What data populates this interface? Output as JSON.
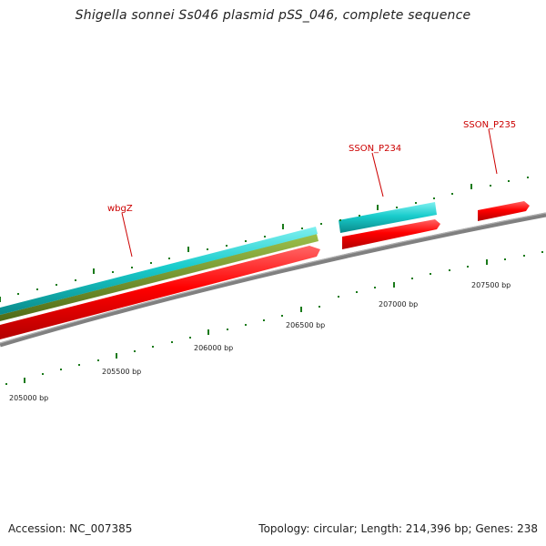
{
  "title": "Shigella sonnei Ss046 plasmid pSS_046, complete sequence",
  "footer": {
    "accession": "Accession: NC_007385",
    "summary": "Topology: circular; Length: 214,396 bp; Genes: 238"
  },
  "gene_labels": {
    "wbgZ": "wbgZ",
    "sson_p234": "SSON_P234",
    "sson_p235": "SSON_P235"
  },
  "bp_labels": {
    "bp205000": "205000 bp",
    "bp205500": "205500 bp",
    "bp206000": "206000 bp",
    "bp206500": "206500 bp",
    "bp207000": "207000 bp",
    "bp207500": "207500 bp"
  },
  "colors": {
    "backbone": "#808080",
    "gene_forward": "#ff0000",
    "cds": "#00cccc",
    "feature_olive": "#6b8e23",
    "tick": "#1a7a1a",
    "label": "#cc0000"
  }
}
